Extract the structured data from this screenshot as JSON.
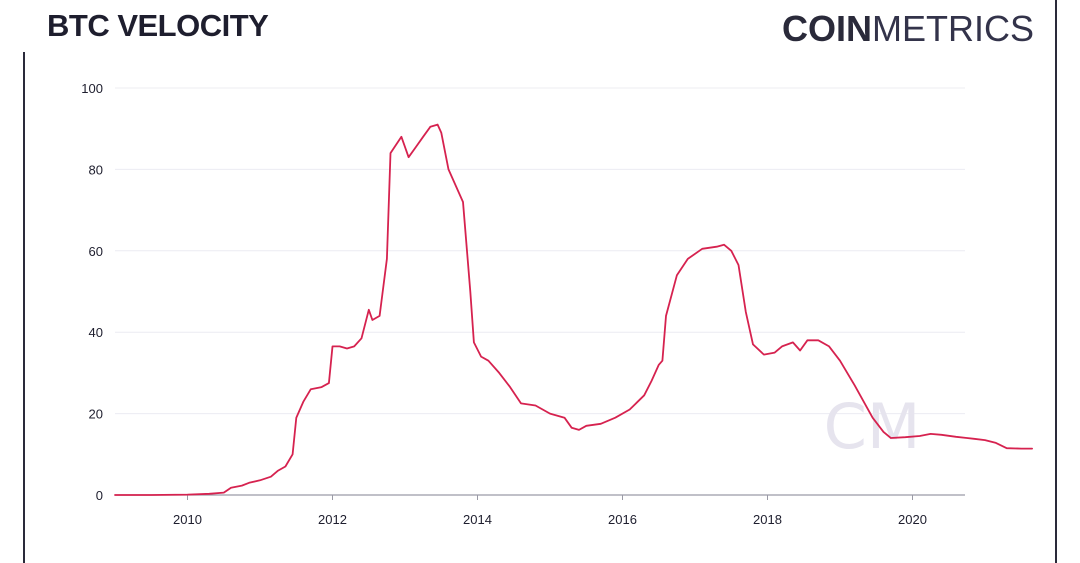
{
  "header": {
    "title": "BTC VELOCITY",
    "brand_bold": "COIN",
    "brand_light": "METRICS",
    "watermark": "CM"
  },
  "colors": {
    "line": "#d6224f",
    "text": "#1e1e2e",
    "grid": "#ececf2",
    "axis": "#9a9aa6",
    "watermark": "#e6e4ee"
  },
  "chart_data": {
    "type": "line",
    "title": "BTC VELOCITY",
    "xlabel": "",
    "ylabel": "",
    "xlim": [
      2009.0,
      2020.85
    ],
    "ylim": [
      0,
      100
    ],
    "grid": true,
    "xticks": [
      2010,
      2012,
      2014,
      2016,
      2018,
      2020
    ],
    "yticks": [
      0,
      20,
      40,
      60,
      80,
      100
    ],
    "series": [
      {
        "points": [
          [
            2009.0,
            0
          ],
          [
            2009.5,
            0
          ],
          [
            2010.0,
            0.1
          ],
          [
            2010.3,
            0.3
          ],
          [
            2010.5,
            0.6
          ],
          [
            2010.6,
            1.8
          ],
          [
            2010.75,
            2.3
          ],
          [
            2010.85,
            3.0
          ],
          [
            2011.0,
            3.6
          ],
          [
            2011.15,
            4.5
          ],
          [
            2011.25,
            6.0
          ],
          [
            2011.35,
            7.0
          ],
          [
            2011.45,
            10.0
          ],
          [
            2011.5,
            19.0
          ],
          [
            2011.6,
            23.0
          ],
          [
            2011.7,
            26.0
          ],
          [
            2011.85,
            26.5
          ],
          [
            2011.95,
            27.5
          ],
          [
            2012.0,
            36.5
          ],
          [
            2012.1,
            36.5
          ],
          [
            2012.2,
            36.0
          ],
          [
            2012.3,
            36.5
          ],
          [
            2012.4,
            38.5
          ],
          [
            2012.5,
            45.5
          ],
          [
            2012.55,
            43.0
          ],
          [
            2012.65,
            44.0
          ],
          [
            2012.75,
            58.0
          ],
          [
            2012.8,
            84.0
          ],
          [
            2012.95,
            88.0
          ],
          [
            2013.05,
            83.0
          ],
          [
            2013.15,
            85.5
          ],
          [
            2013.25,
            88.0
          ],
          [
            2013.35,
            90.5
          ],
          [
            2013.45,
            91.0
          ],
          [
            2013.5,
            89.0
          ],
          [
            2013.6,
            80.0
          ],
          [
            2013.8,
            72.0
          ],
          [
            2013.9,
            50.0
          ],
          [
            2013.95,
            37.5
          ],
          [
            2014.05,
            34.0
          ],
          [
            2014.15,
            33.0
          ],
          [
            2014.3,
            30.0
          ],
          [
            2014.45,
            26.5
          ],
          [
            2014.6,
            22.5
          ],
          [
            2014.8,
            22.0
          ],
          [
            2015.0,
            20.0
          ],
          [
            2015.2,
            19.0
          ],
          [
            2015.3,
            16.5
          ],
          [
            2015.4,
            16.0
          ],
          [
            2015.5,
            17.0
          ],
          [
            2015.7,
            17.5
          ],
          [
            2015.9,
            19.0
          ],
          [
            2016.1,
            21.0
          ],
          [
            2016.3,
            24.5
          ],
          [
            2016.4,
            28.0
          ],
          [
            2016.5,
            32.0
          ],
          [
            2016.55,
            33.0
          ],
          [
            2016.6,
            44.0
          ],
          [
            2016.75,
            54.0
          ],
          [
            2016.9,
            58.0
          ],
          [
            2017.1,
            60.5
          ],
          [
            2017.3,
            61.0
          ],
          [
            2017.4,
            61.5
          ],
          [
            2017.5,
            60.0
          ],
          [
            2017.6,
            56.5
          ],
          [
            2017.7,
            45.0
          ],
          [
            2017.8,
            37.0
          ],
          [
            2017.95,
            34.5
          ],
          [
            2018.1,
            35.0
          ],
          [
            2018.2,
            36.5
          ],
          [
            2018.35,
            37.5
          ],
          [
            2018.45,
            35.5
          ],
          [
            2018.55,
            38.0
          ],
          [
            2018.7,
            38.0
          ],
          [
            2018.85,
            36.5
          ],
          [
            2019.0,
            33.0
          ],
          [
            2019.2,
            27.0
          ],
          [
            2019.45,
            19.0
          ],
          [
            2019.6,
            15.5
          ],
          [
            2019.7,
            14.0
          ],
          [
            2019.9,
            14.2
          ],
          [
            2020.1,
            14.5
          ],
          [
            2020.25,
            15.0
          ],
          [
            2020.4,
            14.8
          ],
          [
            2020.6,
            14.3
          ],
          [
            2020.75,
            14.0
          ],
          [
            2020.85,
            13.8
          ],
          [
            2021.0,
            13.5
          ],
          [
            2021.15,
            12.8
          ],
          [
            2021.3,
            11.5
          ],
          [
            2021.5,
            11.4
          ],
          [
            2021.65,
            11.4
          ]
        ]
      }
    ]
  }
}
